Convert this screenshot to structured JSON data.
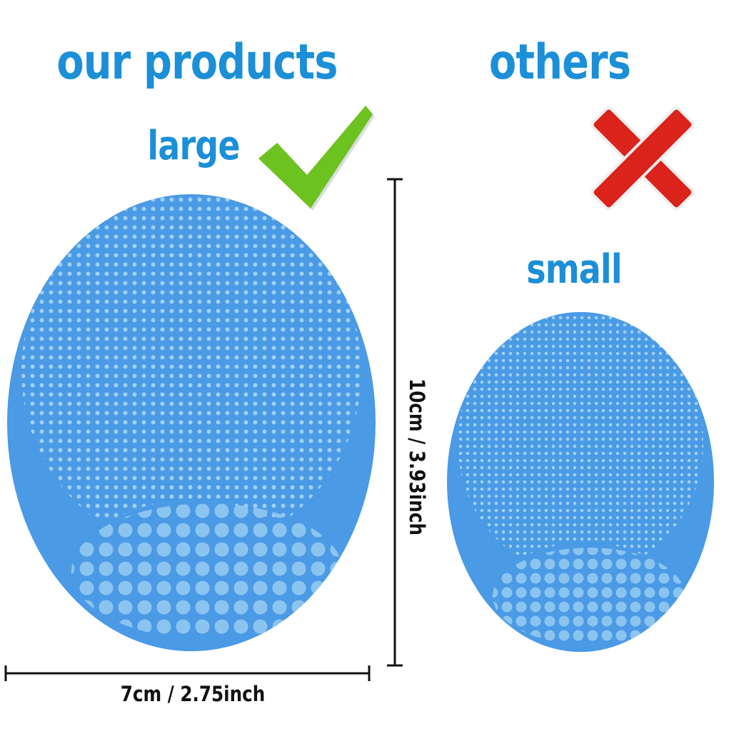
{
  "headings": {
    "ours": "our products",
    "others": "others"
  },
  "labels": {
    "large": "large",
    "small": "small"
  },
  "dimensions": {
    "height": "10cm / 3.93inch",
    "width": "7cm / 2.75inch"
  },
  "icons": {
    "ours_mark": "checkmark-icon",
    "others_mark": "cross-icon"
  },
  "colors": {
    "heading": "#1b8fd8",
    "brush": "#4a9ae6",
    "bristle": "#8cc4f0",
    "check": "#6cc21e",
    "cross": "#d9231b"
  }
}
